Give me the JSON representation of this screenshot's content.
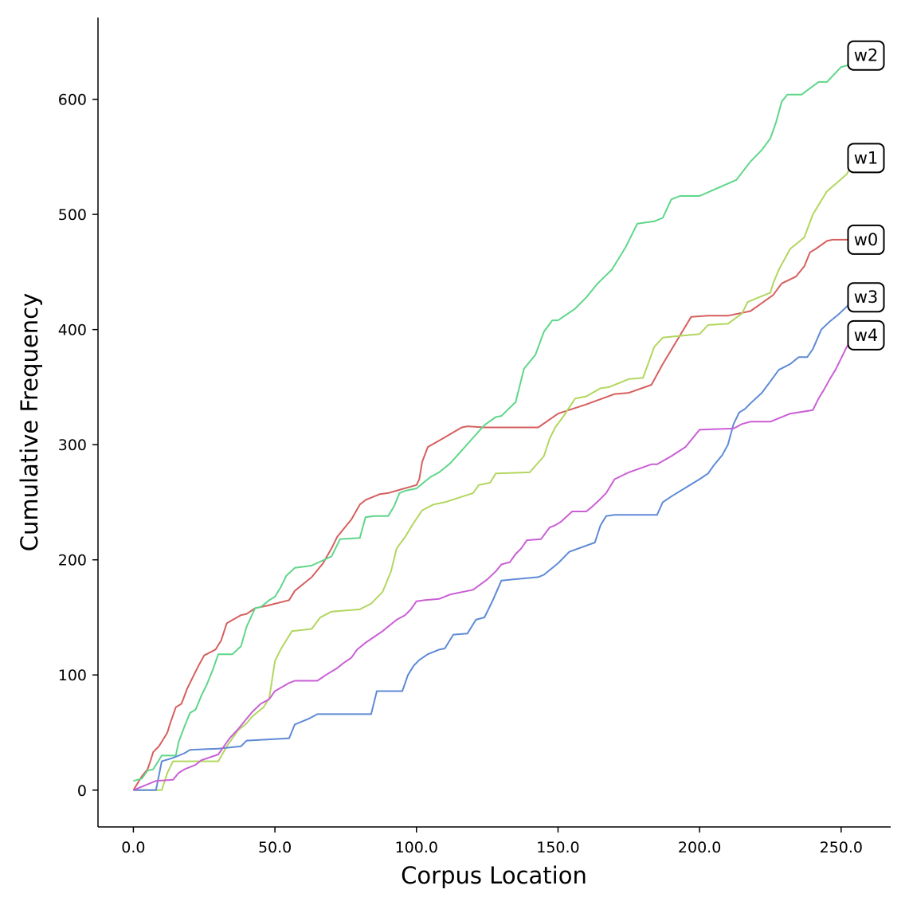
{
  "chart_data": {
    "type": "line",
    "xlabel": "Corpus Location",
    "ylabel": "Cumulative Frequency",
    "xlim": [
      -12.5,
      267.5
    ],
    "ylim": [
      -32,
      671
    ],
    "xticks": [
      0,
      50,
      100,
      150,
      200,
      250
    ],
    "xtick_labels": [
      "0.0",
      "50.0",
      "100.0",
      "150.0",
      "200.0",
      "250.0"
    ],
    "yticks": [
      0,
      100,
      200,
      300,
      400,
      500,
      600
    ],
    "ytick_labels": [
      "0",
      "100",
      "200",
      "300",
      "400",
      "500",
      "600"
    ],
    "grid": false,
    "legend": "none",
    "series": [
      {
        "name": "w0",
        "color": "#d65f5f",
        "end_y": 478,
        "x": [
          0,
          3,
          5,
          6,
          7,
          9,
          10,
          12,
          13,
          14,
          15,
          17,
          19,
          21,
          23,
          25,
          29,
          31,
          33,
          38,
          40,
          43,
          47,
          55,
          57,
          63,
          67,
          70,
          72,
          77,
          80,
          82,
          87,
          90,
          100,
          101,
          102,
          104,
          109,
          116,
          118,
          124,
          143,
          150,
          160,
          170,
          175,
          183,
          187,
          197,
          203,
          210,
          218,
          226,
          229,
          234,
          237,
          239,
          241,
          245,
          247,
          249,
          255
        ],
        "y": [
          0,
          12,
          18,
          25,
          33,
          38,
          42,
          50,
          58,
          65,
          72,
          75,
          88,
          98,
          108,
          117,
          122,
          130,
          145,
          152,
          153,
          158,
          160,
          165,
          173,
          185,
          197,
          210,
          220,
          235,
          248,
          252,
          257,
          258,
          265,
          270,
          285,
          298,
          305,
          315,
          316,
          315,
          315,
          327,
          335,
          344,
          345,
          352,
          370,
          411,
          412,
          412,
          416,
          430,
          440,
          446,
          455,
          467,
          470,
          477,
          478,
          478,
          478
        ]
      },
      {
        "name": "w1",
        "color": "#b3d65f",
        "end_y": 549,
        "x": [
          0,
          10,
          12,
          14,
          18,
          20,
          30,
          33,
          35,
          37,
          40,
          42,
          44,
          46,
          48,
          50,
          52,
          56,
          63,
          66,
          70,
          80,
          84,
          88,
          91,
          93,
          96,
          99,
          102,
          106,
          110,
          120,
          122,
          126,
          128,
          140,
          145,
          147,
          149,
          152,
          156,
          160,
          165,
          168,
          175,
          180,
          184,
          187,
          191,
          200,
          203,
          210,
          215,
          217,
          220,
          225,
          226,
          228,
          232,
          237,
          240,
          245,
          252,
          255
        ],
        "y": [
          0,
          0,
          15,
          25,
          25,
          25,
          25,
          38,
          45,
          52,
          58,
          64,
          68,
          72,
          80,
          112,
          122,
          138,
          140,
          150,
          155,
          157,
          162,
          172,
          190,
          210,
          220,
          232,
          243,
          248,
          250,
          258,
          265,
          267,
          275,
          276,
          290,
          305,
          315,
          325,
          340,
          342,
          349,
          350,
          357,
          358,
          385,
          393,
          394,
          396,
          404,
          405,
          414,
          424,
          427,
          432,
          440,
          452,
          470,
          480,
          500,
          520,
          535,
          549
        ]
      },
      {
        "name": "w2",
        "color": "#5fd68a",
        "end_y": 638,
        "x": [
          0,
          3,
          5,
          7,
          8,
          10,
          13,
          15,
          16,
          18,
          20,
          22,
          24,
          26,
          28,
          30,
          32,
          35,
          38,
          40,
          43,
          45,
          48,
          50,
          52,
          54,
          57,
          60,
          63,
          70,
          73,
          80,
          82,
          85,
          90,
          92,
          94,
          96,
          100,
          103,
          105,
          108,
          112,
          116,
          120,
          124,
          128,
          130,
          135,
          138,
          142,
          145,
          148,
          150,
          156,
          160,
          164,
          169,
          174,
          178,
          181,
          184,
          187,
          190,
          193,
          196,
          200,
          213,
          218,
          222,
          225,
          227,
          229,
          231,
          233,
          236,
          242,
          245,
          250,
          253,
          255
        ],
        "y": [
          8,
          10,
          17,
          18,
          22,
          30,
          30,
          30,
          42,
          55,
          67,
          70,
          82,
          92,
          104,
          118,
          118,
          118,
          125,
          142,
          158,
          159,
          165,
          168,
          176,
          186,
          193,
          194,
          195,
          203,
          218,
          219,
          237,
          238,
          238,
          246,
          258,
          260,
          262,
          268,
          272,
          276,
          284,
          295,
          306,
          317,
          324,
          325,
          337,
          366,
          378,
          398,
          408,
          408,
          418,
          428,
          440,
          452,
          472,
          492,
          493,
          494,
          497,
          513,
          516,
          516,
          516,
          530,
          546,
          556,
          566,
          580,
          598,
          604,
          604,
          604,
          615,
          615,
          628,
          630,
          638
        ]
      },
      {
        "name": "w3",
        "color": "#5f8ad6",
        "end_y": 428,
        "x": [
          0,
          8,
          10,
          14,
          18,
          20,
          30,
          38,
          40,
          55,
          57,
          62,
          65,
          70,
          84,
          86,
          95,
          97,
          99,
          101,
          104,
          108,
          110,
          113,
          118,
          121,
          124,
          126,
          127,
          130,
          143,
          145,
          150,
          154,
          163,
          165,
          167,
          170,
          185,
          187,
          190,
          200,
          203,
          205,
          208,
          210,
          212,
          214,
          216,
          218,
          222,
          225,
          228,
          232,
          235,
          238,
          240,
          243,
          246,
          249,
          252,
          255
        ],
        "y": [
          0,
          0,
          25,
          28,
          32,
          35,
          36,
          38,
          43,
          45,
          57,
          62,
          66,
          66,
          66,
          86,
          86,
          100,
          108,
          113,
          118,
          122,
          123,
          135,
          136,
          148,
          150,
          160,
          165,
          182,
          185,
          187,
          197,
          207,
          215,
          230,
          238,
          239,
          239,
          250,
          255,
          270,
          275,
          282,
          291,
          300,
          318,
          328,
          331,
          336,
          345,
          355,
          365,
          370,
          376,
          376,
          383,
          400,
          407,
          413,
          420,
          428
        ]
      },
      {
        "name": "w4",
        "color": "#ca5fd6",
        "end_y": 395,
        "x": [
          0,
          3,
          5,
          8,
          14,
          16,
          18,
          22,
          24,
          30,
          32,
          34,
          37,
          40,
          42,
          45,
          48,
          50,
          55,
          57,
          60,
          65,
          68,
          72,
          74,
          77,
          79,
          82,
          85,
          88,
          93,
          96,
          98,
          100,
          103,
          108,
          112,
          120,
          125,
          128,
          130,
          133,
          135,
          137,
          139,
          144,
          147,
          149,
          151,
          155,
          160,
          162,
          165,
          167,
          170,
          175,
          183,
          185,
          190,
          195,
          200,
          212,
          215,
          218,
          225,
          232,
          240,
          242,
          244,
          246,
          248,
          250,
          252,
          255
        ],
        "y": [
          0,
          3,
          5,
          8,
          9,
          15,
          18,
          22,
          26,
          31,
          38,
          45,
          53,
          62,
          68,
          75,
          79,
          86,
          93,
          95,
          95,
          95,
          100,
          106,
          110,
          115,
          122,
          128,
          133,
          138,
          148,
          152,
          157,
          164,
          165,
          166,
          170,
          174,
          183,
          190,
          196,
          198,
          205,
          210,
          217,
          218,
          228,
          230,
          233,
          242,
          242,
          246,
          253,
          258,
          270,
          276,
          283,
          283,
          290,
          298,
          313,
          314,
          318,
          320,
          320,
          327,
          330,
          340,
          348,
          357,
          365,
          375,
          385,
          395
        ]
      }
    ]
  }
}
